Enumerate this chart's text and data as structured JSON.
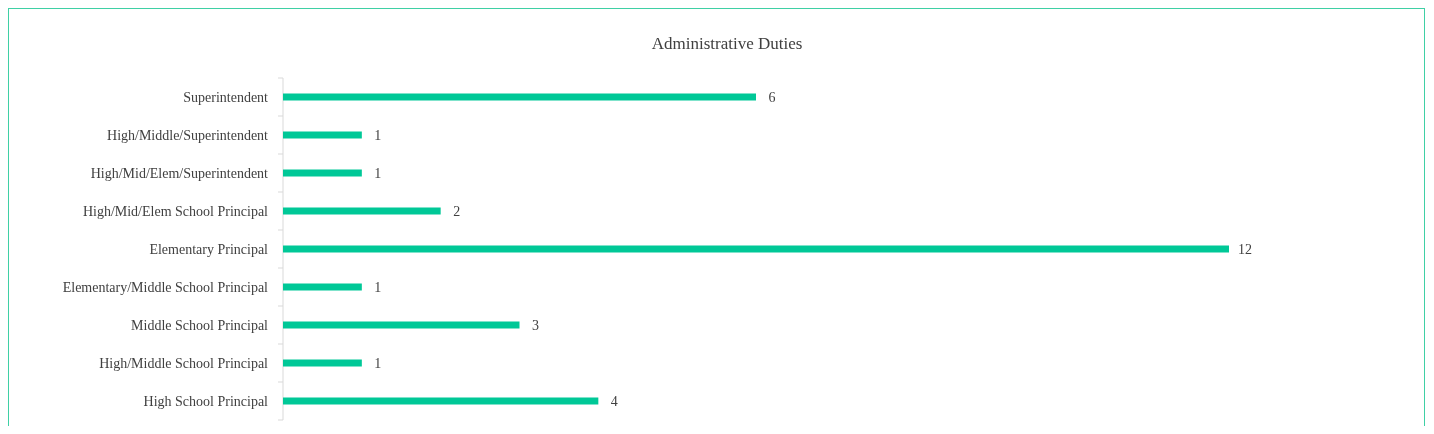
{
  "chart_data": {
    "type": "bar",
    "orientation": "horizontal",
    "title": "Administrative Duties",
    "categories": [
      "Superintendent",
      "High/Middle/Superintendent",
      "High/Mid/Elem/Superintendent",
      "High/Mid/Elem School Principal",
      "Elementary Principal",
      "Elementary/Middle School Principal",
      "Middle School Principal",
      "High/Middle School Principal",
      "High School Principal"
    ],
    "values": [
      6,
      1,
      1,
      2,
      12,
      1,
      3,
      1,
      4
    ],
    "color": "#00c897",
    "data_labels": true
  }
}
